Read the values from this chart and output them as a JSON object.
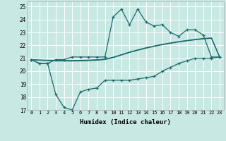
{
  "title": "",
  "xlabel": "Humidex (Indice chaleur)",
  "xlim": [
    -0.5,
    23.5
  ],
  "ylim": [
    17,
    25.4
  ],
  "xticks": [
    0,
    1,
    2,
    3,
    4,
    5,
    6,
    7,
    8,
    9,
    10,
    11,
    12,
    13,
    14,
    15,
    16,
    17,
    18,
    19,
    20,
    21,
    22,
    23
  ],
  "yticks": [
    17,
    18,
    19,
    20,
    21,
    22,
    23,
    24,
    25
  ],
  "bg_color": "#c8e8e4",
  "line_color": "#1a6b6b",
  "x": [
    0,
    1,
    2,
    3,
    4,
    5,
    6,
    7,
    8,
    9,
    10,
    11,
    12,
    13,
    14,
    15,
    16,
    17,
    18,
    19,
    20,
    21,
    22,
    23
  ],
  "y_upper": [
    20.9,
    20.6,
    20.6,
    20.9,
    20.9,
    21.1,
    21.1,
    21.1,
    21.1,
    21.1,
    24.2,
    24.8,
    23.6,
    24.8,
    23.8,
    23.5,
    23.6,
    23.0,
    22.7,
    23.2,
    23.2,
    22.8,
    21.1,
    21.1
  ],
  "y_lower": [
    20.9,
    20.6,
    20.6,
    18.2,
    17.2,
    17.0,
    18.4,
    18.6,
    18.7,
    19.3,
    19.3,
    19.3,
    19.3,
    19.4,
    19.5,
    19.6,
    20.0,
    20.3,
    20.6,
    20.8,
    21.0,
    21.0,
    21.0,
    21.1
  ],
  "y_reg1": [
    20.9,
    20.85,
    20.82,
    20.8,
    20.79,
    20.79,
    20.8,
    20.82,
    20.85,
    20.9,
    21.05,
    21.25,
    21.45,
    21.62,
    21.78,
    21.92,
    22.05,
    22.16,
    22.26,
    22.35,
    22.43,
    22.5,
    22.55,
    21.1
  ],
  "y_reg2": [
    20.9,
    20.87,
    20.85,
    20.84,
    20.83,
    20.83,
    20.84,
    20.86,
    20.89,
    20.94,
    21.08,
    21.28,
    21.48,
    21.65,
    21.81,
    21.95,
    22.08,
    22.19,
    22.29,
    22.38,
    22.46,
    22.53,
    22.58,
    21.1
  ]
}
